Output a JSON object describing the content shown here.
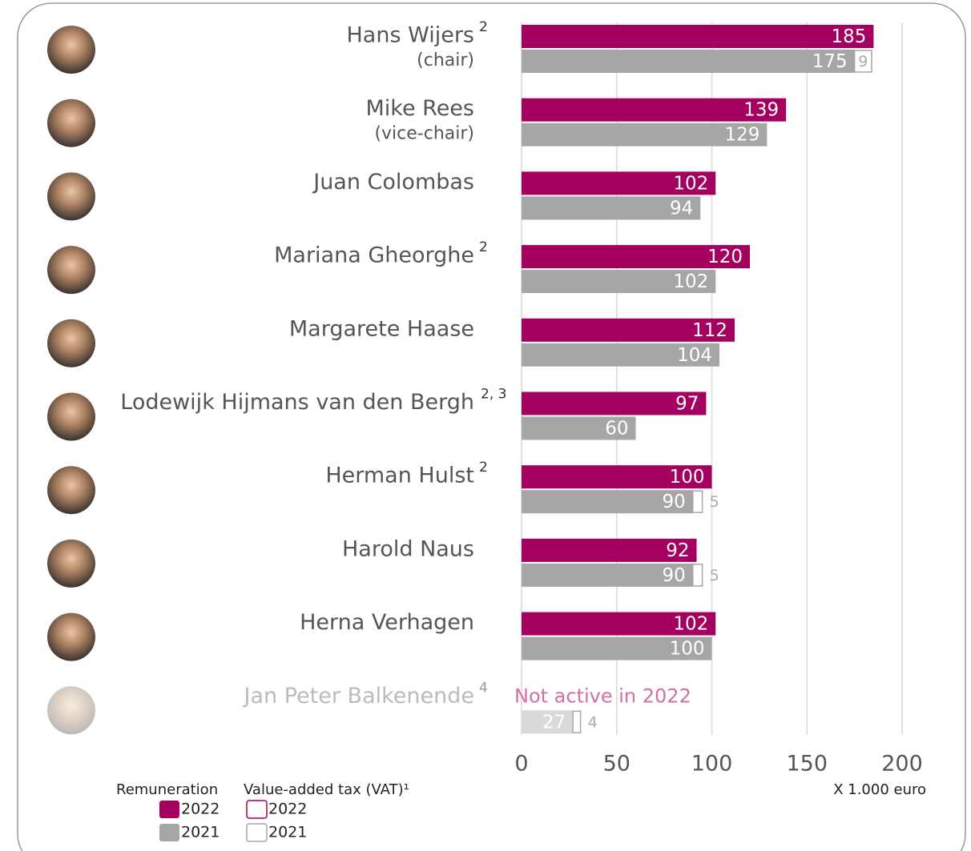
{
  "chart_data": {
    "type": "bar",
    "orientation": "horizontal",
    "categories": [
      "Hans Wijers",
      "Mike Rees",
      "Juan Colombas",
      "Mariana Gheorghe",
      "Margarete Haase",
      "Lodewijk Hijmans van den Bergh",
      "Herman Hulst",
      "Harold Naus",
      "Herna Verhagen",
      "Jan Peter Balkenende"
    ],
    "category_notes": [
      "2",
      null,
      null,
      "2",
      null,
      "2, 3",
      "2",
      null,
      null,
      "4"
    ],
    "category_roles": [
      "(chair)",
      "(vice-chair)",
      null,
      null,
      null,
      null,
      null,
      null,
      null,
      null
    ],
    "series": [
      {
        "name": "2022",
        "group": "Remuneration",
        "color": "#a3005f",
        "values": [
          185,
          139,
          102,
          120,
          112,
          97,
          100,
          92,
          102,
          null
        ]
      },
      {
        "name": "2021",
        "group": "Remuneration",
        "color": "#a6a6a6",
        "values": [
          175,
          129,
          94,
          102,
          104,
          60,
          90,
          90,
          100,
          27
        ]
      },
      {
        "name": "2022",
        "group": "Value-added tax (VAT)¹",
        "color": "#a3005f",
        "stack_on": 0,
        "values": [
          null,
          null,
          null,
          null,
          null,
          null,
          null,
          null,
          null,
          null
        ]
      },
      {
        "name": "2021",
        "group": "Value-added tax (VAT)¹",
        "color": "#a6a6a6",
        "stack_on": 1,
        "values": [
          9,
          null,
          null,
          null,
          null,
          null,
          5,
          5,
          null,
          4
        ]
      }
    ],
    "annotations": [
      {
        "text": "Not active in 2022",
        "category": 9,
        "color": "#d36fa6"
      }
    ],
    "xlabel": "X 1.000 euro",
    "xlim": [
      0,
      200
    ],
    "xticks": [
      0,
      50,
      100,
      150,
      200
    ],
    "grid": true
  }
}
